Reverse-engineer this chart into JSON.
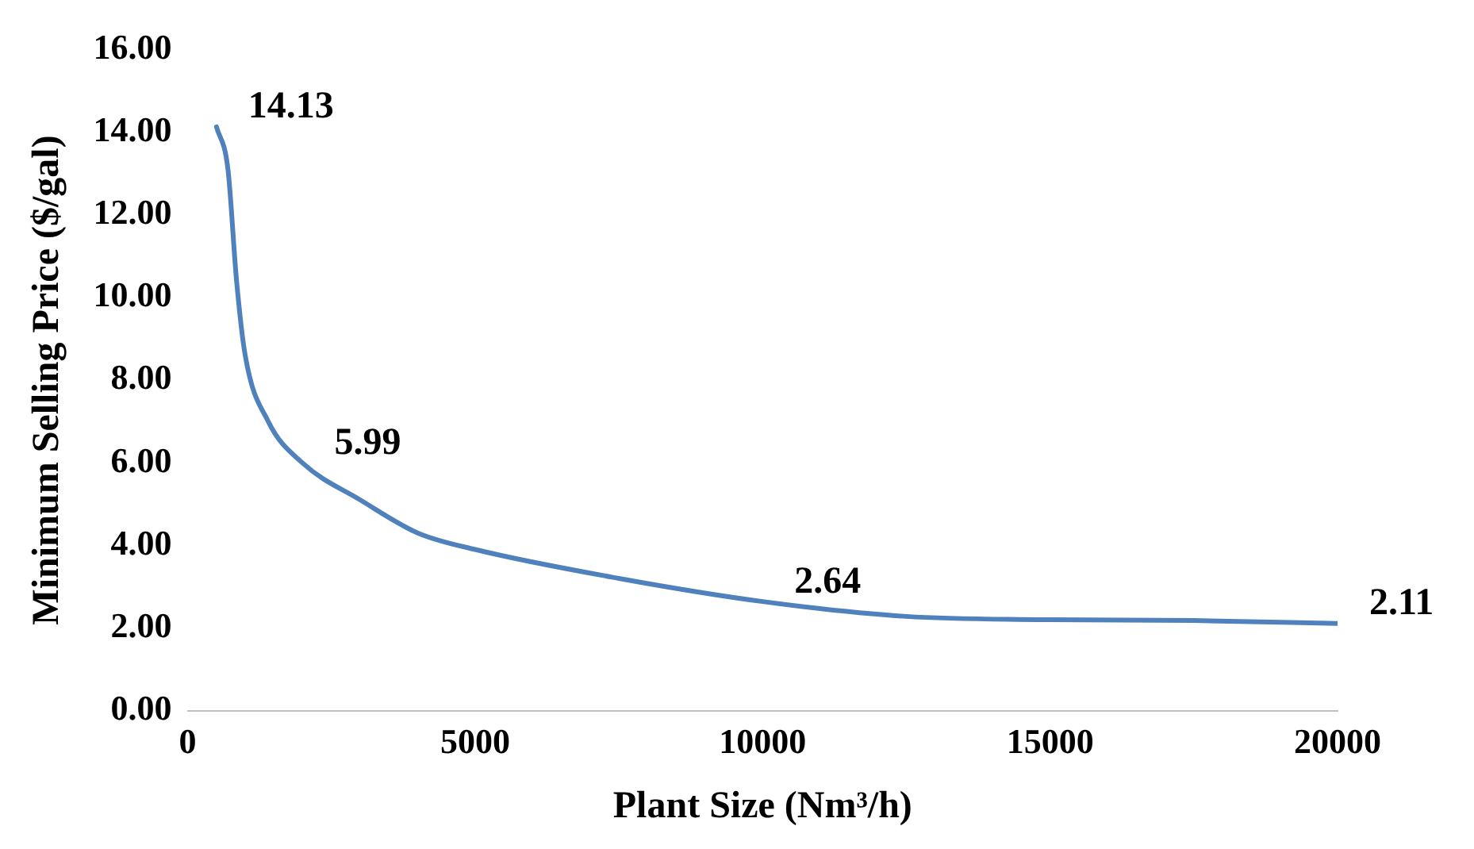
{
  "chart_data": {
    "type": "line",
    "xlabel": "Plant Size (Nm³/h)",
    "ylabel": "Minimum Selling Price ($/gal)",
    "x": [
      500,
      700,
      850,
      1000,
      1400,
      2000,
      3000,
      4000,
      5000,
      7500,
      10000,
      12500,
      15000,
      17500,
      20000
    ],
    "series": [
      {
        "color": "#4f81bd",
        "values": [
          14.13,
          13.1,
          10.4,
          8.6,
          7.0,
          5.99,
          5.1,
          4.3,
          3.9,
          3.2,
          2.64,
          2.28,
          2.2,
          2.18,
          2.11
        ],
        "value_labels": [
          "14.13",
          null,
          null,
          null,
          null,
          "5.99",
          null,
          null,
          null,
          null,
          "2.64",
          null,
          null,
          null,
          "2.11"
        ]
      }
    ],
    "xlim": [
      0,
      20000
    ],
    "xticks": [
      0,
      5000,
      10000,
      15000,
      20000
    ],
    "ylim": [
      0,
      16
    ],
    "yticks": [
      {
        "value": 0,
        "label": "0.00"
      },
      {
        "value": 2,
        "label": "2.00"
      },
      {
        "value": 4,
        "label": "4.00"
      },
      {
        "value": 6,
        "label": "6.00"
      },
      {
        "value": 8,
        "label": "8.00"
      },
      {
        "value": 10,
        "label": "10.00"
      },
      {
        "value": 12,
        "label": "12.00"
      },
      {
        "value": 14,
        "label": "14.00"
      },
      {
        "value": 16,
        "label": "16.00"
      }
    ],
    "grid": false,
    "legend": false,
    "marker": "none",
    "line_style": "solid"
  }
}
